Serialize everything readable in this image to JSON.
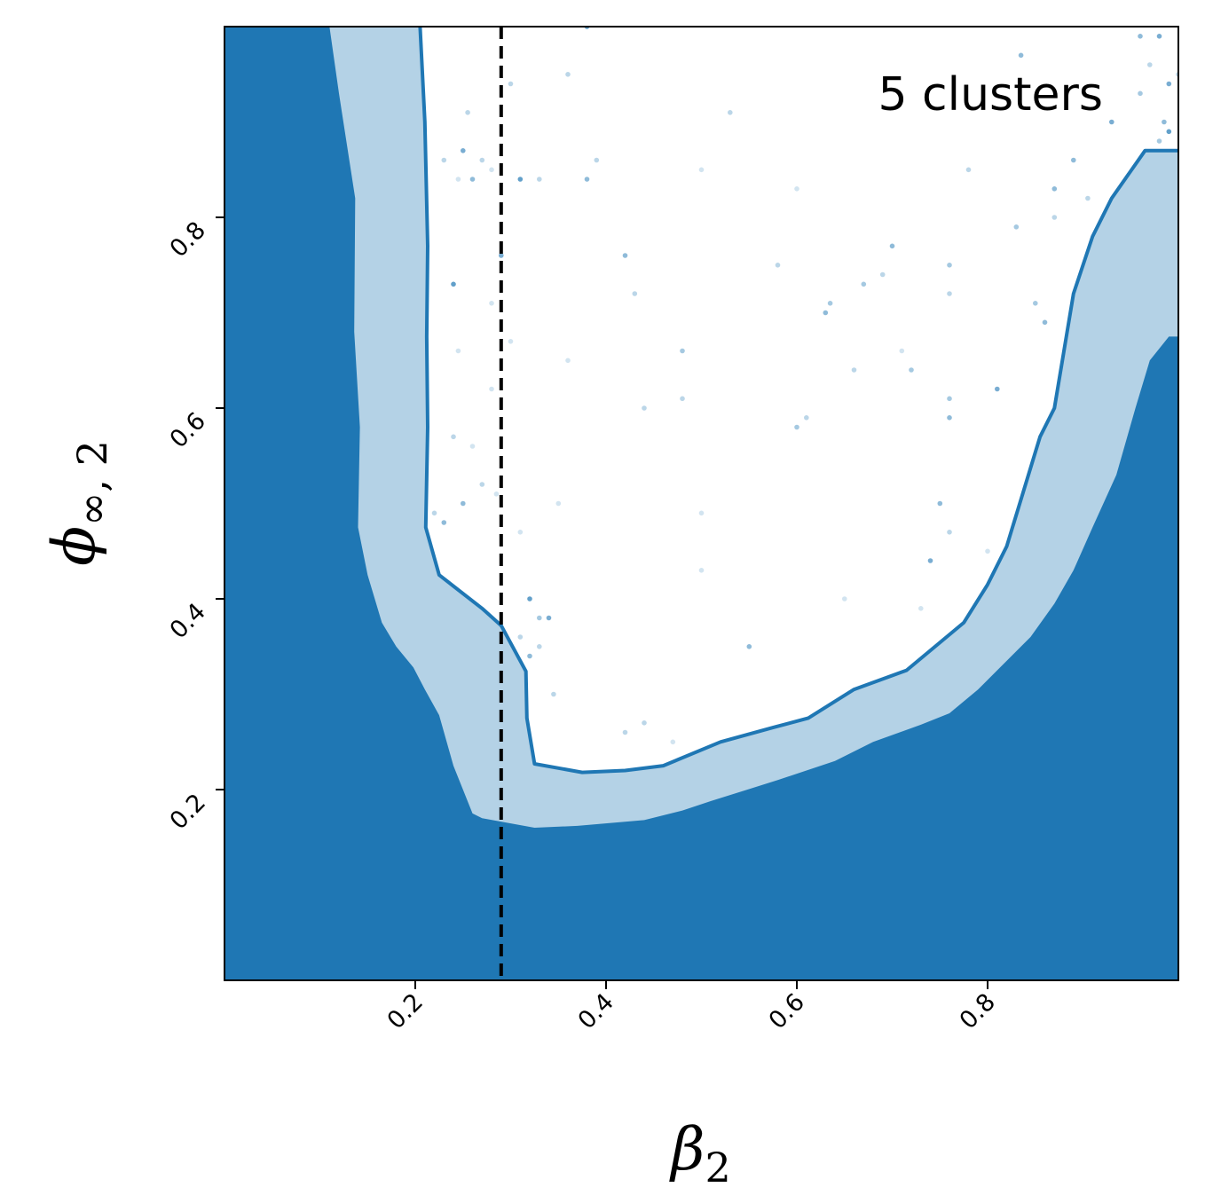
{
  "chart_data": {
    "type": "contour",
    "annotation": "5 clusters",
    "xlabel": {
      "symbol": "β",
      "subscript": "2"
    },
    "ylabel": {
      "symbol": "ϕ",
      "subscript": "∞, 2"
    },
    "xlim": [
      0.0,
      1.0
    ],
    "ylim": [
      0.0,
      1.0
    ],
    "xticks": [
      0.2,
      0.4,
      0.6,
      0.8
    ],
    "yticks": [
      0.2,
      0.4,
      0.6,
      0.8
    ],
    "xtick_labels": [
      "0.2",
      "0.4",
      "0.6",
      "0.8"
    ],
    "ytick_labels": [
      "0.2",
      "0.4",
      "0.6",
      "0.8"
    ],
    "vertical_line": {
      "x": 0.29,
      "style": "dashed",
      "color": "#000000"
    },
    "colors": {
      "dark": "#1f77b4",
      "light": "#b4d2e6",
      "outline": "#1f77b4"
    },
    "regions": [
      {
        "name": "outer-region",
        "color": "#b4d2e6",
        "boundary": [
          [
            0.0,
            1.0
          ],
          [
            0.205,
            1.0
          ],
          [
            0.21,
            0.9
          ],
          [
            0.213,
            0.77
          ],
          [
            0.212,
            0.675
          ],
          [
            0.213,
            0.58
          ],
          [
            0.211,
            0.475
          ],
          [
            0.225,
            0.425
          ],
          [
            0.27,
            0.39
          ],
          [
            0.29,
            0.372
          ],
          [
            0.316,
            0.324
          ],
          [
            0.317,
            0.275
          ],
          [
            0.325,
            0.227
          ],
          [
            0.375,
            0.218
          ],
          [
            0.42,
            0.22
          ],
          [
            0.46,
            0.225
          ],
          [
            0.52,
            0.25
          ],
          [
            0.575,
            0.265
          ],
          [
            0.612,
            0.275
          ],
          [
            0.66,
            0.305
          ],
          [
            0.715,
            0.325
          ],
          [
            0.775,
            0.375
          ],
          [
            0.8,
            0.415
          ],
          [
            0.82,
            0.455
          ],
          [
            0.855,
            0.57
          ],
          [
            0.87,
            0.6
          ],
          [
            0.89,
            0.72
          ],
          [
            0.91,
            0.78
          ],
          [
            0.93,
            0.82
          ],
          [
            0.965,
            0.87
          ],
          [
            1.0,
            0.87
          ],
          [
            1.0,
            0.0
          ],
          [
            0.0,
            0.0
          ]
        ]
      },
      {
        "name": "inner-region",
        "color": "#1f77b4",
        "boundary": [
          [
            0.0,
            1.0
          ],
          [
            0.11,
            1.0
          ],
          [
            0.12,
            0.93
          ],
          [
            0.137,
            0.82
          ],
          [
            0.136,
            0.68
          ],
          [
            0.142,
            0.58
          ],
          [
            0.14,
            0.475
          ],
          [
            0.15,
            0.425
          ],
          [
            0.165,
            0.375
          ],
          [
            0.18,
            0.35
          ],
          [
            0.198,
            0.328
          ],
          [
            0.21,
            0.305
          ],
          [
            0.225,
            0.278
          ],
          [
            0.24,
            0.225
          ],
          [
            0.26,
            0.175
          ],
          [
            0.27,
            0.17
          ],
          [
            0.325,
            0.16
          ],
          [
            0.37,
            0.162
          ],
          [
            0.44,
            0.168
          ],
          [
            0.48,
            0.178
          ],
          [
            0.51,
            0.188
          ],
          [
            0.58,
            0.21
          ],
          [
            0.64,
            0.23
          ],
          [
            0.68,
            0.25
          ],
          [
            0.73,
            0.268
          ],
          [
            0.76,
            0.28
          ],
          [
            0.79,
            0.305
          ],
          [
            0.82,
            0.335
          ],
          [
            0.845,
            0.36
          ],
          [
            0.87,
            0.395
          ],
          [
            0.89,
            0.43
          ],
          [
            0.91,
            0.475
          ],
          [
            0.935,
            0.53
          ],
          [
            0.955,
            0.6
          ],
          [
            0.97,
            0.65
          ],
          [
            0.99,
            0.675
          ],
          [
            1.0,
            0.675
          ],
          [
            1.0,
            0.0
          ],
          [
            0.0,
            0.0
          ]
        ]
      }
    ],
    "contour_line": [
      [
        0.205,
        1.0
      ],
      [
        0.21,
        0.9
      ],
      [
        0.213,
        0.77
      ],
      [
        0.212,
        0.675
      ],
      [
        0.213,
        0.58
      ],
      [
        0.211,
        0.475
      ],
      [
        0.225,
        0.425
      ],
      [
        0.27,
        0.39
      ],
      [
        0.29,
        0.372
      ],
      [
        0.316,
        0.324
      ],
      [
        0.317,
        0.275
      ],
      [
        0.325,
        0.227
      ],
      [
        0.375,
        0.218
      ],
      [
        0.42,
        0.22
      ],
      [
        0.46,
        0.225
      ],
      [
        0.52,
        0.25
      ],
      [
        0.575,
        0.265
      ],
      [
        0.612,
        0.275
      ],
      [
        0.66,
        0.305
      ],
      [
        0.715,
        0.325
      ],
      [
        0.775,
        0.375
      ],
      [
        0.8,
        0.415
      ],
      [
        0.82,
        0.455
      ],
      [
        0.855,
        0.57
      ],
      [
        0.87,
        0.6
      ],
      [
        0.89,
        0.72
      ],
      [
        0.91,
        0.78
      ],
      [
        0.93,
        0.82
      ],
      [
        0.965,
        0.87
      ],
      [
        1.0,
        0.87
      ]
    ],
    "scatter": {
      "color": "#1f77b4",
      "points": [
        [
          0.25,
          0.87,
          0.6
        ],
        [
          0.27,
          0.86,
          0.3
        ],
        [
          0.255,
          0.91,
          0.3
        ],
        [
          0.245,
          0.84,
          0.2
        ],
        [
          0.28,
          0.85,
          0.2
        ],
        [
          0.26,
          0.84,
          0.5
        ],
        [
          0.3,
          0.94,
          0.3
        ],
        [
          0.24,
          0.73,
          0.7
        ],
        [
          0.28,
          0.71,
          0.2
        ],
        [
          0.29,
          0.76,
          0.6
        ],
        [
          0.24,
          0.57,
          0.3
        ],
        [
          0.26,
          0.56,
          0.2
        ],
        [
          0.22,
          0.49,
          0.3
        ],
        [
          0.23,
          0.48,
          0.5
        ],
        [
          0.25,
          0.5,
          0.5
        ],
        [
          0.27,
          0.52,
          0.3
        ],
        [
          0.285,
          0.51,
          0.2
        ],
        [
          0.31,
          0.47,
          0.2
        ],
        [
          0.32,
          0.4,
          0.7
        ],
        [
          0.33,
          0.38,
          0.4
        ],
        [
          0.34,
          0.38,
          0.6
        ],
        [
          0.31,
          0.36,
          0.3
        ],
        [
          0.33,
          0.35,
          0.3
        ],
        [
          0.32,
          0.34,
          0.5
        ],
        [
          0.345,
          0.3,
          0.3
        ],
        [
          0.3,
          0.67,
          0.2
        ],
        [
          0.31,
          0.84,
          0.7
        ],
        [
          0.33,
          0.84,
          0.3
        ],
        [
          0.36,
          0.95,
          0.3
        ],
        [
          0.38,
          0.84,
          0.5
        ],
        [
          0.38,
          1.0,
          0.7
        ],
        [
          0.39,
          0.86,
          0.3
        ],
        [
          0.42,
          0.76,
          0.5
        ],
        [
          0.43,
          0.72,
          0.3
        ],
        [
          0.44,
          0.6,
          0.3
        ],
        [
          0.44,
          0.27,
          0.3
        ],
        [
          0.5,
          0.85,
          0.2
        ],
        [
          0.53,
          0.91,
          0.3
        ],
        [
          0.55,
          0.35,
          0.5
        ],
        [
          0.6,
          0.58,
          0.4
        ],
        [
          0.61,
          0.59,
          0.3
        ],
        [
          0.63,
          0.7,
          0.5
        ],
        [
          0.635,
          0.71,
          0.4
        ],
        [
          0.66,
          0.64,
          0.3
        ],
        [
          0.67,
          0.73,
          0.4
        ],
        [
          0.69,
          0.74,
          0.3
        ],
        [
          0.7,
          0.77,
          0.5
        ],
        [
          0.72,
          0.64,
          0.4
        ],
        [
          0.74,
          0.44,
          0.6
        ],
        [
          0.75,
          0.5,
          0.5
        ],
        [
          0.76,
          0.59,
          0.5
        ],
        [
          0.76,
          0.61,
          0.4
        ],
        [
          0.76,
          0.47,
          0.3
        ],
        [
          0.76,
          0.75,
          0.4
        ],
        [
          0.76,
          0.72,
          0.3
        ],
        [
          0.81,
          0.62,
          0.6
        ],
        [
          0.83,
          0.79,
          0.4
        ],
        [
          0.835,
          0.97,
          0.5
        ],
        [
          0.85,
          0.71,
          0.4
        ],
        [
          0.86,
          0.69,
          0.5
        ],
        [
          0.87,
          0.83,
          0.5
        ],
        [
          0.89,
          0.86,
          0.5
        ],
        [
          0.905,
          0.82,
          0.3
        ],
        [
          0.93,
          0.9,
          0.6
        ],
        [
          0.96,
          0.99,
          0.5
        ],
        [
          0.98,
          0.99,
          0.6
        ],
        [
          0.99,
          0.94,
          0.6
        ],
        [
          0.99,
          0.89,
          0.7
        ],
        [
          0.98,
          0.88,
          0.4
        ],
        [
          0.97,
          0.96,
          0.3
        ],
        [
          1.0,
          0.95,
          0.3
        ],
        [
          0.985,
          0.9,
          0.5
        ],
        [
          0.96,
          0.93,
          0.4
        ],
        [
          0.87,
          0.8,
          0.3
        ],
        [
          0.78,
          0.85,
          0.3
        ],
        [
          0.8,
          0.45,
          0.2
        ],
        [
          0.48,
          0.66,
          0.4
        ],
        [
          0.48,
          0.61,
          0.3
        ],
        [
          0.5,
          0.49,
          0.2
        ],
        [
          0.58,
          0.75,
          0.3
        ],
        [
          0.6,
          0.83,
          0.2
        ],
        [
          0.47,
          0.25,
          0.2
        ],
        [
          0.5,
          0.43,
          0.2
        ],
        [
          0.65,
          0.4,
          0.2
        ],
        [
          0.73,
          0.39,
          0.2
        ],
        [
          0.71,
          0.66,
          0.2
        ],
        [
          0.35,
          0.5,
          0.2
        ],
        [
          0.36,
          0.65,
          0.2
        ],
        [
          0.42,
          0.26,
          0.3
        ],
        [
          0.28,
          0.62,
          0.2
        ],
        [
          0.23,
          0.86,
          0.3
        ],
        [
          0.245,
          0.66,
          0.2
        ]
      ]
    }
  }
}
